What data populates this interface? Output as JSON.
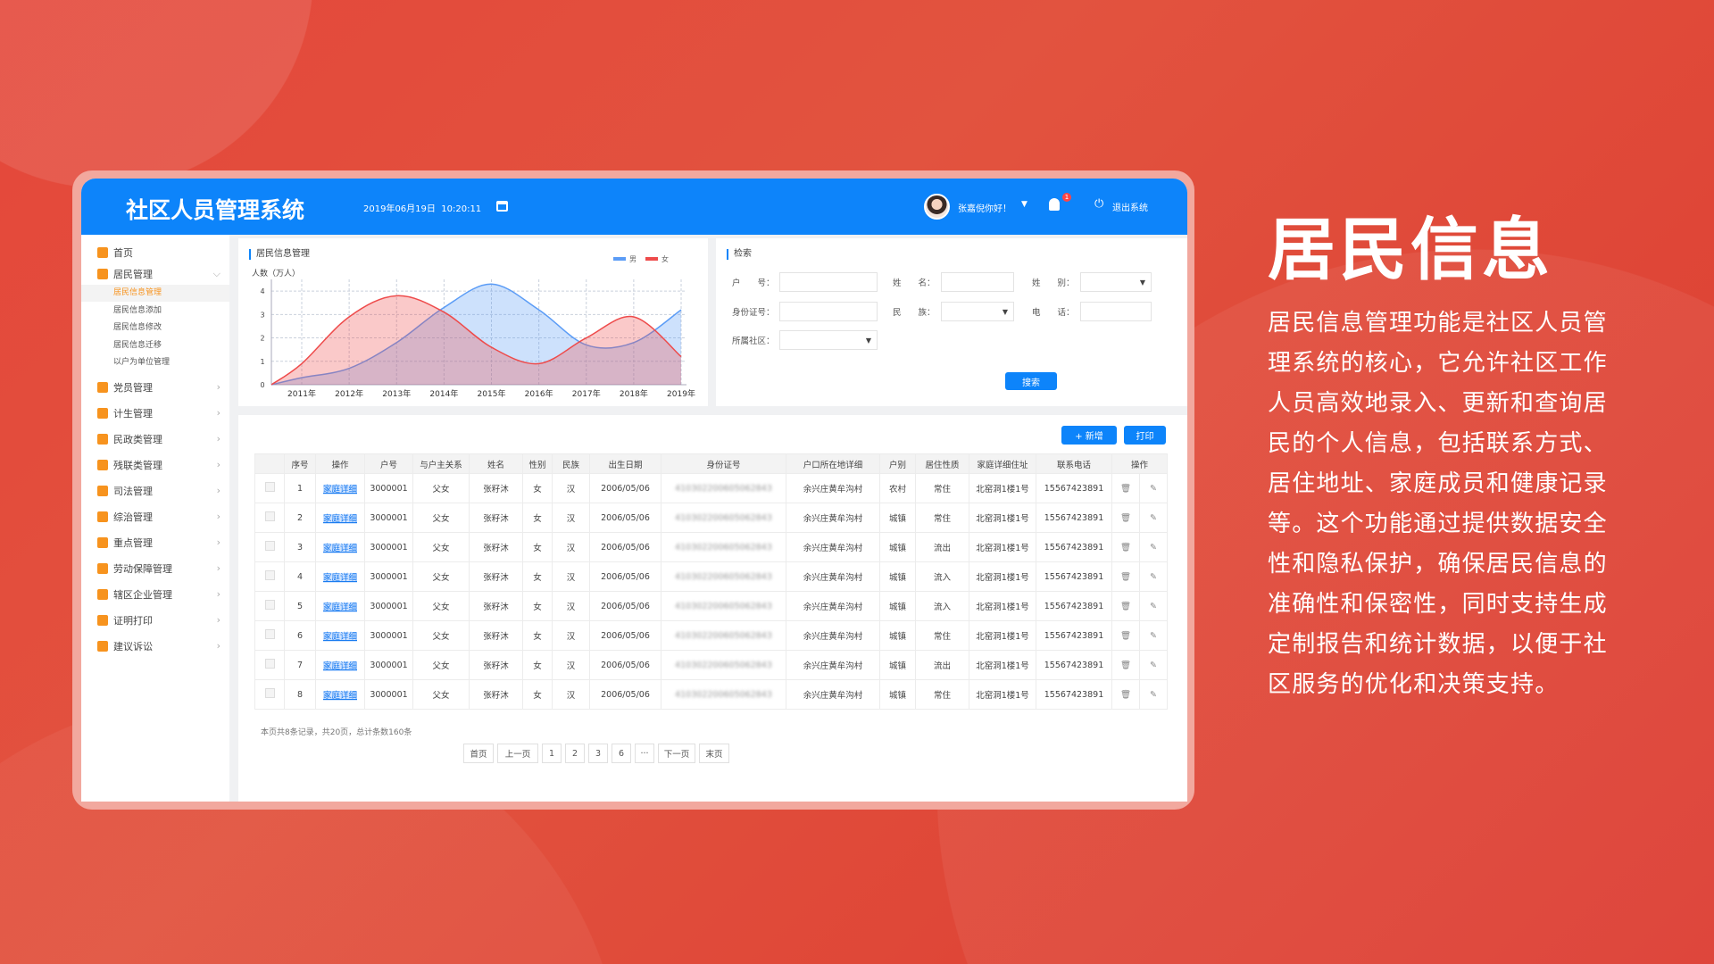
{
  "app": {
    "title": "社区人员管理系统",
    "datetime": "2019年06月19日  10:20:11",
    "user_greeting": "张嘉倪你好！",
    "notification_count": "1",
    "logout": "退出系统",
    "accent": "#0d84fa",
    "highlight": "#f7931e"
  },
  "sidebar": {
    "items": [
      {
        "label": "首页",
        "icon": "home-icon"
      },
      {
        "label": "居民管理",
        "icon": "resident-icon",
        "expanded": true,
        "children": [
          "居民信息管理",
          "居民信息添加",
          "居民信息修改",
          "居民信息迁移",
          "以户为单位管理"
        ],
        "active_child": 0
      },
      {
        "label": "党员管理",
        "icon": "party-member-icon"
      },
      {
        "label": "计生管理",
        "icon": "family-planning-icon"
      },
      {
        "label": "民政类管理",
        "icon": "civil-affairs-icon"
      },
      {
        "label": "残联类管理",
        "icon": "disability-icon"
      },
      {
        "label": "司法管理",
        "icon": "justice-icon"
      },
      {
        "label": "综治管理",
        "icon": "governance-icon"
      },
      {
        "label": "重点管理",
        "icon": "key-person-icon"
      },
      {
        "label": "劳动保障管理",
        "icon": "labor-icon"
      },
      {
        "label": "辖区企业管理",
        "icon": "enterprise-icon"
      },
      {
        "label": "证明打印",
        "icon": "print-certificate-icon"
      },
      {
        "label": "建议诉讼",
        "icon": "suggestion-icon"
      }
    ]
  },
  "chart_panel": {
    "title": "居民信息管理"
  },
  "chart_data": {
    "type": "area",
    "ylabel": "人数（万人）",
    "categories": [
      "2011年",
      "2012年",
      "2013年",
      "2014年",
      "2015年",
      "2016年",
      "2017年",
      "2018年",
      "2019年"
    ],
    "yticks": [
      0,
      1,
      2,
      3,
      4
    ],
    "ylim": [
      0,
      4.5
    ],
    "grid": true,
    "legend": "top-right",
    "series": [
      {
        "name": "男",
        "color": "#5b9cf6",
        "values": [
          0.3,
          0.7,
          1.8,
          3.3,
          4.3,
          3.2,
          1.7,
          1.8,
          3.2
        ]
      },
      {
        "name": "女",
        "color": "#ee4b4b",
        "values": [
          0.9,
          2.9,
          3.8,
          3.1,
          1.6,
          0.9,
          2.0,
          2.9,
          1.2
        ]
      }
    ]
  },
  "search": {
    "title": "检索",
    "fields": [
      {
        "label": "户　　号：",
        "value": ""
      },
      {
        "label": "姓　　名：",
        "value": ""
      },
      {
        "label": "姓　　别：",
        "value": ""
      },
      {
        "label": "身份证号：",
        "value": ""
      },
      {
        "label": "民　　族：",
        "value": ""
      },
      {
        "label": "电　　话：",
        "value": ""
      },
      {
        "label": "所属社区：",
        "value": ""
      }
    ],
    "button": "搜索"
  },
  "table": {
    "add_button": "+ 新增",
    "print_button": "打印",
    "columns": [
      "",
      "序号",
      "操作",
      "户号",
      "与户主关系",
      "姓名",
      "性别",
      "民族",
      "出生日期",
      "身份证号",
      "户口所在地详细",
      "户别",
      "居住性质",
      "家庭详细住址",
      "联系电话",
      "操作"
    ],
    "rows": [
      {
        "no": "1",
        "action": "家庭详细",
        "hh": "3000001",
        "rel": "父女",
        "name": "张籽沐",
        "sex": "女",
        "eth": "汉",
        "dob": "2006/05/06",
        "id": "410302200605062843",
        "addr": "余兴庄黄牟沟村",
        "type": "农村",
        "res": "常住",
        "home": "北窑洞1楼1号",
        "phone": "15567423891"
      },
      {
        "no": "2",
        "action": "家庭详细",
        "hh": "3000001",
        "rel": "父女",
        "name": "张籽沐",
        "sex": "女",
        "eth": "汉",
        "dob": "2006/05/06",
        "id": "410302200605062843",
        "addr": "余兴庄黄牟沟村",
        "type": "城镇",
        "res": "常住",
        "home": "北窑洞1楼1号",
        "phone": "15567423891"
      },
      {
        "no": "3",
        "action": "家庭详细",
        "hh": "3000001",
        "rel": "父女",
        "name": "张籽沐",
        "sex": "女",
        "eth": "汉",
        "dob": "2006/05/06",
        "id": "410302200605062843",
        "addr": "余兴庄黄牟沟村",
        "type": "城镇",
        "res": "流出",
        "home": "北窑洞1楼1号",
        "phone": "15567423891"
      },
      {
        "no": "4",
        "action": "家庭详细",
        "hh": "3000001",
        "rel": "父女",
        "name": "张籽沐",
        "sex": "女",
        "eth": "汉",
        "dob": "2006/05/06",
        "id": "410302200605062843",
        "addr": "余兴庄黄牟沟村",
        "type": "城镇",
        "res": "流入",
        "home": "北窑洞1楼1号",
        "phone": "15567423891"
      },
      {
        "no": "5",
        "action": "家庭详细",
        "hh": "3000001",
        "rel": "父女",
        "name": "张籽沐",
        "sex": "女",
        "eth": "汉",
        "dob": "2006/05/06",
        "id": "410302200605062843",
        "addr": "余兴庄黄牟沟村",
        "type": "城镇",
        "res": "流入",
        "home": "北窑洞1楼1号",
        "phone": "15567423891"
      },
      {
        "no": "6",
        "action": "家庭详细",
        "hh": "3000001",
        "rel": "父女",
        "name": "张籽沐",
        "sex": "女",
        "eth": "汉",
        "dob": "2006/05/06",
        "id": "410302200605062843",
        "addr": "余兴庄黄牟沟村",
        "type": "城镇",
        "res": "常住",
        "home": "北窑洞1楼1号",
        "phone": "15567423891"
      },
      {
        "no": "7",
        "action": "家庭详细",
        "hh": "3000001",
        "rel": "父女",
        "name": "张籽沐",
        "sex": "女",
        "eth": "汉",
        "dob": "2006/05/06",
        "id": "410302200605062843",
        "addr": "余兴庄黄牟沟村",
        "type": "城镇",
        "res": "流出",
        "home": "北窑洞1楼1号",
        "phone": "15567423891"
      },
      {
        "no": "8",
        "action": "家庭详细",
        "hh": "3000001",
        "rel": "父女",
        "name": "张籽沐",
        "sex": "女",
        "eth": "汉",
        "dob": "2006/05/06",
        "id": "410302200605062843",
        "addr": "余兴庄黄牟沟村",
        "type": "城镇",
        "res": "常住",
        "home": "北窑洞1楼1号",
        "phone": "15567423891"
      }
    ],
    "summary": "本页共8条记录，共20页，总计条数160条",
    "pagination": [
      "首页",
      "上一页",
      "1",
      "2",
      "3",
      "6",
      "···",
      "下一页",
      "末页"
    ]
  },
  "promo": {
    "title": "居民信息",
    "body": "居民信息管理功能是社区人员管理系统的核心，它允许社区工作人员高效地录入、更新和查询居民的个人信息，包括联系方式、居住地址、家庭成员和健康记录等。这个功能通过提供数据安全性和隐私保护，确保居民信息的准确性和保密性，同时支持生成定制报告和统计数据，以便于社区服务的优化和决策支持。"
  }
}
